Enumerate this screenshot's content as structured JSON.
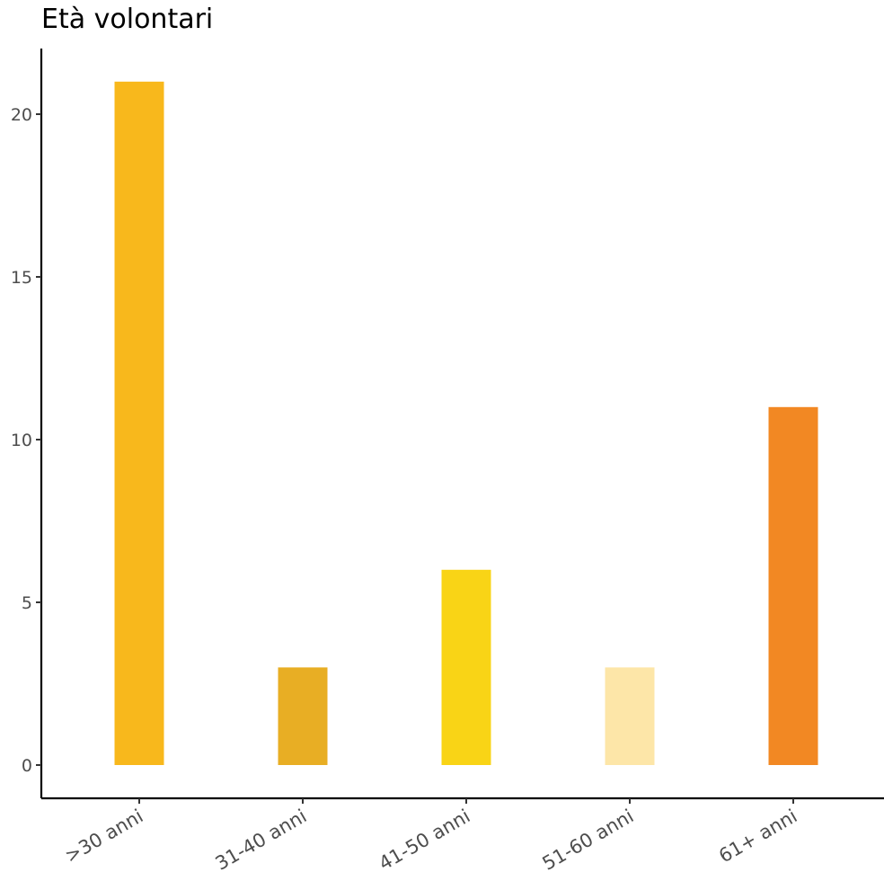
{
  "chart_data": {
    "type": "bar",
    "title": "Età volontari",
    "xlabel": "",
    "ylabel": "",
    "categories": [
      ">30 anni",
      "31-40 anni",
      "41-50 anni",
      "51-60 anni",
      "61+ anni"
    ],
    "values": [
      21,
      3,
      6,
      3,
      11
    ],
    "colors": [
      "#F8B81C",
      "#E8AE24",
      "#F9D416",
      "#FDE6A8",
      "#F28823"
    ],
    "ylim": [
      0,
      22
    ],
    "yticks": [
      0,
      5,
      10,
      15,
      20
    ],
    "grid": false,
    "legend": "none"
  }
}
